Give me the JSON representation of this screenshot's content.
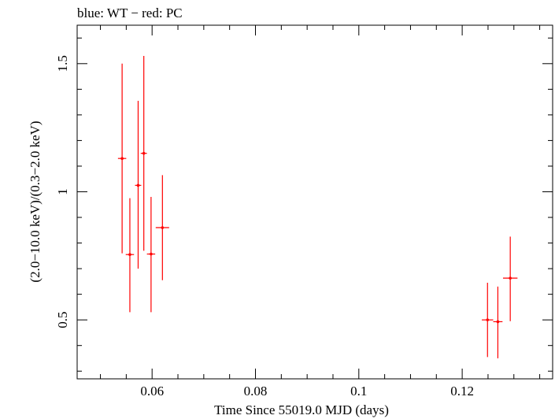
{
  "chart_data": {
    "type": "scatter",
    "title": "blue: WT − red: PC",
    "xlabel": "Time Since 55019.0 MJD (days)",
    "ylabel": "(2.0−10.0 keV)/(0.3−2.0 keV)",
    "xlim": [
      0.0455,
      0.1375
    ],
    "ylim": [
      0.27,
      1.65
    ],
    "xticks": [
      0.06,
      0.08,
      0.1,
      0.12
    ],
    "xtick_labels": [
      "0.06",
      "0.08",
      "0.1",
      "0.12"
    ],
    "yticks": [
      0.5,
      1,
      1.5
    ],
    "ytick_labels": [
      "0.5",
      "1",
      "1.5"
    ],
    "series": [
      {
        "name": "PC",
        "color": "#ff0000",
        "points": [
          {
            "x": 0.0542,
            "y": 1.13,
            "xerr": 0.0008,
            "ylo": 0.76,
            "yhi": 1.5
          },
          {
            "x": 0.0557,
            "y": 0.755,
            "xerr": 0.0008,
            "ylo": 0.53,
            "yhi": 0.975
          },
          {
            "x": 0.0573,
            "y": 1.025,
            "xerr": 0.0006,
            "ylo": 0.7,
            "yhi": 1.355
          },
          {
            "x": 0.0584,
            "y": 1.15,
            "xerr": 0.0006,
            "ylo": 0.77,
            "yhi": 1.53
          },
          {
            "x": 0.0598,
            "y": 0.757,
            "xerr": 0.0008,
            "ylo": 0.53,
            "yhi": 0.98
          },
          {
            "x": 0.062,
            "y": 0.86,
            "xerr": 0.0013,
            "ylo": 0.655,
            "yhi": 1.065
          },
          {
            "x": 0.1249,
            "y": 0.5,
            "xerr": 0.0011,
            "ylo": 0.355,
            "yhi": 0.645
          },
          {
            "x": 0.1269,
            "y": 0.493,
            "xerr": 0.0009,
            "ylo": 0.35,
            "yhi": 0.63
          },
          {
            "x": 0.1293,
            "y": 0.663,
            "xerr": 0.0014,
            "ylo": 0.495,
            "yhi": 0.825
          }
        ]
      }
    ]
  }
}
